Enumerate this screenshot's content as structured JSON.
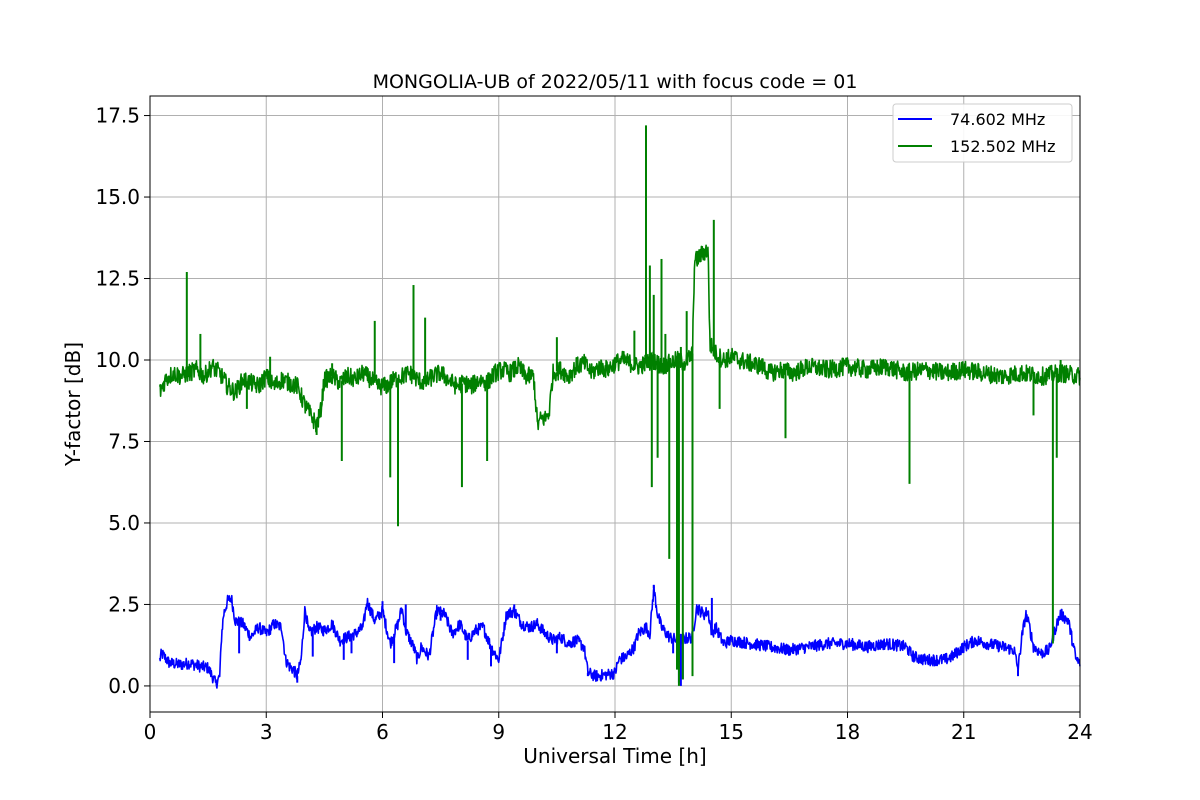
{
  "chart_data": {
    "type": "line",
    "title": "MONGOLIA-UB of 2022/05/11 with focus code = 01",
    "xlabel": "Universal Time [h]",
    "ylabel": "Y-factor [dB]",
    "xlim": [
      0,
      24
    ],
    "ylim": [
      -0.8,
      18.1
    ],
    "xticks": [
      0,
      3,
      6,
      9,
      12,
      15,
      18,
      21,
      24
    ],
    "xtick_labels": [
      "0",
      "3",
      "6",
      "9",
      "12",
      "15",
      "18",
      "21",
      "24"
    ],
    "yticks": [
      0,
      2.5,
      5,
      7.5,
      10,
      12.5,
      15,
      17.5
    ],
    "ytick_labels": [
      "0.0",
      "2.5",
      "5.0",
      "7.5",
      "10.0",
      "12.5",
      "15.0",
      "17.5"
    ],
    "grid": true,
    "legend_position": "top-right",
    "series": [
      {
        "name": "  74.602 MHz",
        "color": "#0000ff",
        "points": [
          [
            0.25,
            0.8
          ],
          [
            0.3,
            1.0
          ],
          [
            0.5,
            0.7
          ],
          [
            0.8,
            0.65
          ],
          [
            1.0,
            0.7
          ],
          [
            1.3,
            0.6
          ],
          [
            1.5,
            0.55
          ],
          [
            1.65,
            0.2
          ],
          [
            1.7,
            0.05
          ],
          [
            1.8,
            0.3
          ],
          [
            1.85,
            1.6
          ],
          [
            1.9,
            2.2
          ],
          [
            2.0,
            2.6
          ],
          [
            2.1,
            2.7
          ],
          [
            2.2,
            2.0
          ],
          [
            2.4,
            1.9
          ],
          [
            2.6,
            1.5
          ],
          [
            2.8,
            1.8
          ],
          [
            3.0,
            1.6
          ],
          [
            3.2,
            1.9
          ],
          [
            3.4,
            1.8
          ],
          [
            3.5,
            0.8
          ],
          [
            3.6,
            0.6
          ],
          [
            3.7,
            0.5
          ],
          [
            3.8,
            0.3
          ],
          [
            3.9,
            0.8
          ],
          [
            4.0,
            2.4
          ],
          [
            4.1,
            1.6
          ],
          [
            4.3,
            1.8
          ],
          [
            4.5,
            1.7
          ],
          [
            4.7,
            1.9
          ],
          [
            4.9,
            1.4
          ],
          [
            5.1,
            1.5
          ],
          [
            5.3,
            1.6
          ],
          [
            5.5,
            1.8
          ],
          [
            5.6,
            2.6
          ],
          [
            5.8,
            2.0
          ],
          [
            6.0,
            2.3
          ],
          [
            6.2,
            1.3
          ],
          [
            6.4,
            1.9
          ],
          [
            6.5,
            2.4
          ],
          [
            6.6,
            1.7
          ],
          [
            6.8,
            1.2
          ],
          [
            6.9,
            0.8
          ],
          [
            7.0,
            1.2
          ],
          [
            7.2,
            0.9
          ],
          [
            7.4,
            2.3
          ],
          [
            7.6,
            2.2
          ],
          [
            7.8,
            1.6
          ],
          [
            8.0,
            1.9
          ],
          [
            8.2,
            1.4
          ],
          [
            8.4,
            1.7
          ],
          [
            8.6,
            1.8
          ],
          [
            8.8,
            1.2
          ],
          [
            9.0,
            0.8
          ],
          [
            9.1,
            1.5
          ],
          [
            9.2,
            2.2
          ],
          [
            9.4,
            2.3
          ],
          [
            9.6,
            1.9
          ],
          [
            9.8,
            1.8
          ],
          [
            10.0,
            1.9
          ],
          [
            10.2,
            1.6
          ],
          [
            10.4,
            1.4
          ],
          [
            10.6,
            1.5
          ],
          [
            10.8,
            1.3
          ],
          [
            11.0,
            1.4
          ],
          [
            11.2,
            1.2
          ],
          [
            11.3,
            0.4
          ],
          [
            11.5,
            0.3
          ],
          [
            11.8,
            0.35
          ],
          [
            12.0,
            0.4
          ],
          [
            12.1,
            0.8
          ],
          [
            12.3,
            0.9
          ],
          [
            12.5,
            1.2
          ],
          [
            12.6,
            1.6
          ],
          [
            12.8,
            1.8
          ],
          [
            12.9,
            1.6
          ],
          [
            13.0,
            3.0
          ],
          [
            13.1,
            2.2
          ],
          [
            13.2,
            1.8
          ],
          [
            13.4,
            1.5
          ],
          [
            13.6,
            1.4
          ],
          [
            14.0,
            1.5
          ],
          [
            14.1,
            2.4
          ],
          [
            14.3,
            2.2
          ],
          [
            14.4,
            2.3
          ],
          [
            14.5,
            1.6
          ],
          [
            14.6,
            1.8
          ],
          [
            14.8,
            1.3
          ],
          [
            15.0,
            1.4
          ],
          [
            15.5,
            1.3
          ],
          [
            16.0,
            1.2
          ],
          [
            16.5,
            1.1
          ],
          [
            17.0,
            1.2
          ],
          [
            17.5,
            1.3
          ],
          [
            18.0,
            1.3
          ],
          [
            18.5,
            1.2
          ],
          [
            19.0,
            1.3
          ],
          [
            19.5,
            1.2
          ],
          [
            19.7,
            0.9
          ],
          [
            20.0,
            0.8
          ],
          [
            20.3,
            0.8
          ],
          [
            20.5,
            0.8
          ],
          [
            20.7,
            0.9
          ],
          [
            20.9,
            1.1
          ],
          [
            21.0,
            1.2
          ],
          [
            21.3,
            1.4
          ],
          [
            21.6,
            1.3
          ],
          [
            22.0,
            1.2
          ],
          [
            22.3,
            1.1
          ],
          [
            22.4,
            0.5
          ],
          [
            22.5,
            1.5
          ],
          [
            22.6,
            2.2
          ],
          [
            22.7,
            1.8
          ],
          [
            22.8,
            1.2
          ],
          [
            23.0,
            1.0
          ],
          [
            23.2,
            1.1
          ],
          [
            23.4,
            1.9
          ],
          [
            23.5,
            2.2
          ],
          [
            23.7,
            2.0
          ],
          [
            23.8,
            1.4
          ],
          [
            23.9,
            0.8
          ],
          [
            24.0,
            0.7
          ]
        ],
        "spikes": [
          [
            0.3,
            1.0
          ],
          [
            2.3,
            1.0
          ],
          [
            3.8,
            0.1
          ],
          [
            4.2,
            0.9
          ],
          [
            5.0,
            0.8
          ],
          [
            5.2,
            1.0
          ],
          [
            6.0,
            2.6
          ],
          [
            6.3,
            0.7
          ],
          [
            6.6,
            2.5
          ],
          [
            7.5,
            2.0
          ],
          [
            8.2,
            0.8
          ],
          [
            8.8,
            0.6
          ],
          [
            9.4,
            2.5
          ],
          [
            10.5,
            1.0
          ],
          [
            11.3,
            0.3
          ],
          [
            13.0,
            3.1
          ],
          [
            13.5,
            1.0
          ],
          [
            13.65,
            0.1
          ],
          [
            13.7,
            0.0
          ],
          [
            13.75,
            0.2
          ],
          [
            14.5,
            2.7
          ],
          [
            22.4,
            0.3
          ]
        ]
      },
      {
        "name": "152.502 MHz",
        "color": "#008000",
        "points": [
          [
            0.25,
            9.0
          ],
          [
            0.4,
            9.4
          ],
          [
            0.6,
            9.6
          ],
          [
            0.8,
            9.5
          ],
          [
            1.0,
            9.6
          ],
          [
            1.2,
            9.7
          ],
          [
            1.4,
            9.5
          ],
          [
            1.6,
            9.8
          ],
          [
            1.8,
            9.6
          ],
          [
            2.0,
            9.2
          ],
          [
            2.2,
            9.0
          ],
          [
            2.4,
            9.4
          ],
          [
            2.6,
            9.3
          ],
          [
            2.8,
            9.2
          ],
          [
            3.0,
            9.5
          ],
          [
            3.2,
            9.2
          ],
          [
            3.4,
            9.4
          ],
          [
            3.6,
            9.3
          ],
          [
            3.8,
            9.2
          ],
          [
            4.0,
            8.6
          ],
          [
            4.2,
            8.2
          ],
          [
            4.3,
            8.0
          ],
          [
            4.4,
            8.4
          ],
          [
            4.5,
            9.4
          ],
          [
            4.7,
            9.5
          ],
          [
            4.9,
            9.3
          ],
          [
            5.1,
            9.5
          ],
          [
            5.3,
            9.4
          ],
          [
            5.5,
            9.6
          ],
          [
            5.7,
            9.4
          ],
          [
            5.9,
            9.2
          ],
          [
            6.1,
            9.2
          ],
          [
            6.3,
            9.4
          ],
          [
            6.5,
            9.5
          ],
          [
            6.7,
            9.6
          ],
          [
            6.9,
            9.4
          ],
          [
            7.1,
            9.3
          ],
          [
            7.3,
            9.5
          ],
          [
            7.5,
            9.6
          ],
          [
            7.7,
            9.4
          ],
          [
            7.9,
            9.2
          ],
          [
            8.1,
            9.3
          ],
          [
            8.3,
            9.2
          ],
          [
            8.5,
            9.4
          ],
          [
            8.7,
            9.3
          ],
          [
            8.9,
            9.6
          ],
          [
            9.1,
            9.7
          ],
          [
            9.3,
            9.6
          ],
          [
            9.5,
            9.8
          ],
          [
            9.7,
            9.5
          ],
          [
            9.9,
            9.5
          ],
          [
            10.0,
            8.0
          ],
          [
            10.1,
            8.2
          ],
          [
            10.2,
            8.2
          ],
          [
            10.3,
            8.4
          ],
          [
            10.4,
            9.6
          ],
          [
            10.6,
            9.7
          ],
          [
            10.8,
            9.5
          ],
          [
            11.0,
            9.8
          ],
          [
            11.2,
            9.9
          ],
          [
            11.4,
            9.6
          ],
          [
            11.6,
            9.8
          ],
          [
            11.8,
            9.7
          ],
          [
            12.0,
            9.9
          ],
          [
            12.2,
            10.0
          ],
          [
            12.4,
            9.9
          ],
          [
            12.6,
            9.8
          ],
          [
            12.8,
            9.9
          ],
          [
            13.0,
            10.0
          ],
          [
            13.2,
            9.8
          ],
          [
            13.4,
            9.9
          ],
          [
            13.6,
            10.0
          ],
          [
            13.8,
            9.9
          ],
          [
            14.0,
            10.2
          ],
          [
            14.05,
            13.0
          ],
          [
            14.2,
            13.2
          ],
          [
            14.4,
            13.4
          ],
          [
            14.45,
            10.5
          ],
          [
            14.6,
            10.2
          ],
          [
            14.8,
            10.0
          ],
          [
            15.0,
            10.1
          ],
          [
            15.2,
            10.0
          ],
          [
            15.5,
            9.9
          ],
          [
            15.8,
            9.8
          ],
          [
            16.0,
            9.6
          ],
          [
            16.3,
            9.7
          ],
          [
            16.6,
            9.6
          ],
          [
            17.0,
            9.8
          ],
          [
            17.5,
            9.7
          ],
          [
            18.0,
            9.8
          ],
          [
            18.5,
            9.7
          ],
          [
            19.0,
            9.8
          ],
          [
            19.5,
            9.6
          ],
          [
            20.0,
            9.7
          ],
          [
            20.5,
            9.6
          ],
          [
            21.0,
            9.7
          ],
          [
            21.5,
            9.6
          ],
          [
            22.0,
            9.5
          ],
          [
            22.5,
            9.6
          ],
          [
            23.0,
            9.5
          ],
          [
            23.5,
            9.6
          ],
          [
            24.0,
            9.5
          ]
        ],
        "spikes": [
          [
            0.95,
            12.7
          ],
          [
            1.3,
            10.8
          ],
          [
            2.5,
            8.5
          ],
          [
            3.1,
            10.1
          ],
          [
            4.3,
            7.7
          ],
          [
            4.7,
            9.9
          ],
          [
            4.95,
            6.9
          ],
          [
            5.8,
            11.2
          ],
          [
            6.2,
            6.4
          ],
          [
            6.4,
            4.9
          ],
          [
            6.8,
            12.3
          ],
          [
            7.1,
            11.3
          ],
          [
            8.05,
            6.1
          ],
          [
            8.3,
            9.2
          ],
          [
            8.7,
            6.9
          ],
          [
            10.5,
            10.7
          ],
          [
            12.5,
            10.9
          ],
          [
            12.8,
            17.2
          ],
          [
            12.9,
            12.9
          ],
          [
            12.95,
            6.1
          ],
          [
            13.0,
            12.0
          ],
          [
            13.1,
            7.0
          ],
          [
            13.2,
            13.1
          ],
          [
            13.3,
            10.8
          ],
          [
            13.4,
            3.9
          ],
          [
            13.5,
            10.0
          ],
          [
            13.6,
            0.5
          ],
          [
            13.65,
            0.0
          ],
          [
            13.7,
            10.4
          ],
          [
            13.75,
            0.2
          ],
          [
            13.85,
            11.5
          ],
          [
            14.0,
            0.3
          ],
          [
            14.55,
            14.3
          ],
          [
            14.7,
            8.5
          ],
          [
            16.4,
            7.6
          ],
          [
            19.6,
            6.2
          ],
          [
            22.8,
            8.3
          ],
          [
            23.3,
            1.3
          ],
          [
            23.4,
            7.0
          ],
          [
            23.5,
            10.0
          ]
        ]
      }
    ]
  }
}
